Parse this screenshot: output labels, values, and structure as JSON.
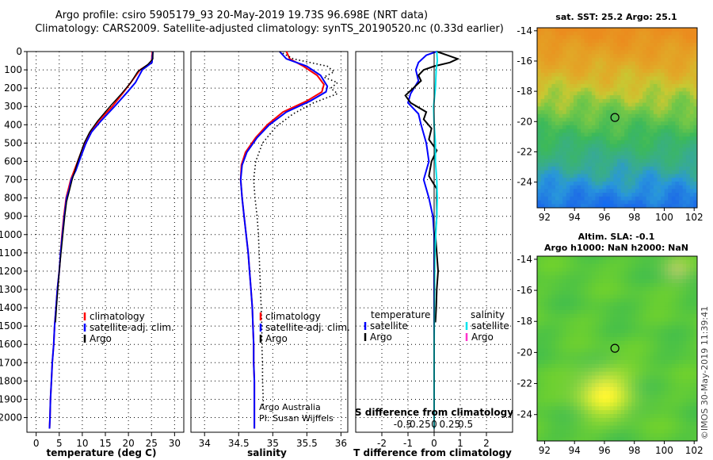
{
  "header": {
    "line1": "Argo profile: csiro 5905179_93 20-May-2019 19.73S 96.698E (NRT data)",
    "line2": "Climatology: CARS2009. Satellite-adjusted climatology: synTS_20190520.nc (0.33d earlier)"
  },
  "colors": {
    "climatology": "#ff0000",
    "satellite": "#0000ff",
    "argo": "#000000",
    "sat_salinity": "#00e5ee",
    "argo_salinity": "#ff33cc"
  },
  "chart_data": [
    {
      "type": "line",
      "name": "temperature",
      "xlabel": "temperature (deg C)",
      "xlim": [
        -2,
        32
      ],
      "ylim": [
        2080,
        0
      ],
      "xticks": [
        "0",
        "5",
        "10",
        "15",
        "20",
        "25",
        "30"
      ],
      "yticks": [
        "0",
        "100",
        "200",
        "300",
        "400",
        "500",
        "600",
        "700",
        "800",
        "900",
        "1000",
        "1100",
        "1200",
        "1300",
        "1400",
        "1500",
        "1600",
        "1700",
        "1800",
        "1900",
        "2000"
      ],
      "legend": [
        "climatology",
        "satellite-adj. clim.",
        "Argo"
      ],
      "series": [
        {
          "name": "climatology",
          "color": "#ff0000",
          "points": [
            [
              25.2,
              0
            ],
            [
              25.1,
              30
            ],
            [
              25,
              60
            ],
            [
              22.5,
              100
            ],
            [
              20.5,
              170
            ],
            [
              19,
              220
            ],
            [
              16.5,
              300
            ],
            [
              13.5,
              380
            ],
            [
              11.5,
              450
            ],
            [
              10.5,
              500
            ],
            [
              9,
              600
            ],
            [
              7.5,
              700
            ],
            [
              7,
              750
            ],
            [
              6.5,
              800
            ],
            [
              6,
              900
            ],
            [
              5.6,
              1000
            ],
            [
              5.3,
              1100
            ],
            [
              5,
              1200
            ],
            [
              4.6,
              1300
            ],
            [
              4.3,
              1400
            ],
            [
              4,
              1500
            ],
            [
              3.8,
              1600
            ],
            [
              3.5,
              1700
            ],
            [
              3.3,
              1800
            ],
            [
              3.1,
              1900
            ],
            [
              3,
              2000
            ],
            [
              2.9,
              2060
            ]
          ]
        },
        {
          "name": "satellite-adj. clim.",
          "color": "#0000ff",
          "points": [
            [
              25.3,
              0
            ],
            [
              25.1,
              60
            ],
            [
              23,
              100
            ],
            [
              21.5,
              170
            ],
            [
              19.8,
              220
            ],
            [
              17,
              300
            ],
            [
              14,
              380
            ],
            [
              12,
              440
            ],
            [
              10.8,
              500
            ],
            [
              9.3,
              600
            ],
            [
              8.6,
              650
            ],
            [
              7.6,
              700
            ],
            [
              7.2,
              750
            ],
            [
              6.6,
              800
            ],
            [
              6.1,
              900
            ],
            [
              5.7,
              1000
            ],
            [
              5.3,
              1100
            ],
            [
              5,
              1200
            ],
            [
              4.6,
              1300
            ],
            [
              4.3,
              1400
            ],
            [
              4,
              1500
            ],
            [
              3.8,
              1600
            ],
            [
              3.5,
              1700
            ],
            [
              3.3,
              1800
            ],
            [
              3.1,
              1900
            ],
            [
              3,
              2000
            ],
            [
              2.9,
              2060
            ]
          ]
        },
        {
          "name": "Argo",
          "color": "#000000",
          "points": [
            [
              25.3,
              0
            ],
            [
              25.3,
              40
            ],
            [
              24.2,
              70
            ],
            [
              22,
              110
            ],
            [
              20.5,
              170
            ],
            [
              18.5,
              230
            ],
            [
              16,
              300
            ],
            [
              13.3,
              380
            ],
            [
              11.6,
              440
            ],
            [
              10.4,
              500
            ],
            [
              9,
              600
            ],
            [
              7.8,
              700
            ],
            [
              7.2,
              760
            ],
            [
              6.6,
              820
            ],
            [
              6.2,
              900
            ],
            [
              5.8,
              1000
            ],
            [
              5.4,
              1100
            ],
            [
              5,
              1200
            ],
            [
              4.7,
              1300
            ],
            [
              4.4,
              1400
            ],
            [
              4.2,
              1480
            ]
          ]
        }
      ]
    },
    {
      "type": "line",
      "name": "salinity",
      "xlabel": "salinity",
      "xlim": [
        33.8,
        36.1
      ],
      "ylim": [
        2080,
        0
      ],
      "xticks": [
        "34",
        "34.5",
        "35",
        "35.5",
        "36"
      ],
      "legend": [
        "climatology",
        "satellite-adj. clim.",
        "Argo"
      ],
      "annotations": [
        "Argo Australia",
        "PI: Susan Wijffels"
      ],
      "series": [
        {
          "name": "climatology",
          "color": "#ff0000",
          "points": [
            [
              35.2,
              0
            ],
            [
              35.25,
              40
            ],
            [
              35.45,
              80
            ],
            [
              35.65,
              130
            ],
            [
              35.75,
              180
            ],
            [
              35.72,
              220
            ],
            [
              35.5,
              270
            ],
            [
              35.15,
              330
            ],
            [
              34.92,
              400
            ],
            [
              34.75,
              470
            ],
            [
              34.6,
              550
            ],
            [
              34.54,
              620
            ],
            [
              34.53,
              700
            ],
            [
              34.55,
              800
            ],
            [
              34.58,
              900
            ],
            [
              34.61,
              1000
            ],
            [
              34.64,
              1100
            ],
            [
              34.66,
              1200
            ],
            [
              34.68,
              1300
            ],
            [
              34.7,
              1400
            ],
            [
              34.71,
              1500
            ],
            [
              34.72,
              1600
            ],
            [
              34.72,
              1700
            ],
            [
              34.73,
              1800
            ],
            [
              34.73,
              1900
            ],
            [
              34.73,
              2000
            ],
            [
              34.73,
              2060
            ]
          ]
        },
        {
          "name": "satellite-adj. clim.",
          "color": "#0000ff",
          "points": [
            [
              35.1,
              0
            ],
            [
              35.2,
              40
            ],
            [
              35.5,
              80
            ],
            [
              35.7,
              130
            ],
            [
              35.8,
              190
            ],
            [
              35.78,
              220
            ],
            [
              35.55,
              270
            ],
            [
              35.2,
              330
            ],
            [
              34.95,
              400
            ],
            [
              34.77,
              470
            ],
            [
              34.62,
              550
            ],
            [
              34.55,
              620
            ],
            [
              34.53,
              700
            ],
            [
              34.55,
              800
            ],
            [
              34.58,
              900
            ],
            [
              34.61,
              1000
            ],
            [
              34.64,
              1100
            ],
            [
              34.66,
              1200
            ],
            [
              34.68,
              1300
            ],
            [
              34.7,
              1400
            ],
            [
              34.71,
              1500
            ],
            [
              34.72,
              1600
            ],
            [
              34.72,
              1700
            ],
            [
              34.73,
              1800
            ],
            [
              34.73,
              1900
            ],
            [
              34.73,
              2000
            ],
            [
              34.73,
              2060
            ]
          ]
        },
        {
          "name": "Argo",
          "color": "#000000",
          "points": [
            [
              35.1,
              0
            ],
            [
              35.3,
              40
            ],
            [
              35.8,
              80
            ],
            [
              35.9,
              110
            ],
            [
              35.75,
              140
            ],
            [
              35.95,
              170
            ],
            [
              35.85,
              200
            ],
            [
              35.95,
              230
            ],
            [
              35.6,
              280
            ],
            [
              35.3,
              340
            ],
            [
              35.05,
              410
            ],
            [
              34.85,
              500
            ],
            [
              34.75,
              600
            ],
            [
              34.72,
              700
            ],
            [
              34.74,
              800
            ],
            [
              34.77,
              900
            ],
            [
              34.79,
              1000
            ],
            [
              34.8,
              1100
            ],
            [
              34.81,
              1200
            ],
            [
              34.82,
              1300
            ],
            [
              34.83,
              1400
            ],
            [
              34.84,
              1500
            ],
            [
              34.84,
              1600
            ],
            [
              34.85,
              1700
            ],
            [
              34.85,
              1800
            ],
            [
              34.86,
              1900
            ],
            [
              34.86,
              1940
            ]
          ]
        }
      ]
    },
    {
      "type": "line",
      "name": "difference",
      "xlabel": "T difference from climatology",
      "xlim": [
        -3,
        3
      ],
      "ylim": [
        2080,
        0
      ],
      "xticks": [
        "-2",
        "-1",
        "0",
        "1",
        "2"
      ],
      "sticks": [
        "-0.5",
        "-0.25",
        "0",
        "0.25",
        "0.5"
      ],
      "s_axis_label": "S difference from climatology",
      "legend_left": {
        "title": "temperature",
        "items": [
          "satellite",
          "Argo"
        ]
      },
      "legend_right": {
        "title": "salinity",
        "items": [
          "satellite",
          "Argo"
        ]
      },
      "series": [
        {
          "name": "T satellite",
          "color": "#0000ff",
          "points": [
            [
              0.1,
              0
            ],
            [
              -0.3,
              20
            ],
            [
              -0.6,
              60
            ],
            [
              -0.7,
              100
            ],
            [
              -0.6,
              160
            ],
            [
              -0.9,
              230
            ],
            [
              -1,
              280
            ],
            [
              -0.6,
              340
            ],
            [
              -0.5,
              400
            ],
            [
              -0.3,
              500
            ],
            [
              -0.2,
              600
            ],
            [
              -0.4,
              700
            ],
            [
              -0.2,
              800
            ],
            [
              -0.05,
              900
            ],
            [
              0,
              1000
            ],
            [
              0,
              1200
            ],
            [
              0,
              1500
            ],
            [
              0,
              1800
            ],
            [
              0,
              2060
            ]
          ]
        },
        {
          "name": "T Argo",
          "color": "#000000",
          "points": [
            [
              0.1,
              0
            ],
            [
              0.5,
              20
            ],
            [
              0.9,
              40
            ],
            [
              0.6,
              60
            ],
            [
              0,
              80
            ],
            [
              -0.4,
              100
            ],
            [
              -0.6,
              130
            ],
            [
              -0.5,
              160
            ],
            [
              -0.8,
              200
            ],
            [
              -1.1,
              240
            ],
            [
              -0.9,
              280
            ],
            [
              -0.3,
              330
            ],
            [
              -0.4,
              370
            ],
            [
              -0.1,
              420
            ],
            [
              -0.2,
              480
            ],
            [
              0.1,
              540
            ],
            [
              -0.1,
              600
            ],
            [
              -0.2,
              680
            ],
            [
              0.1,
              750
            ],
            [
              0.1,
              900
            ],
            [
              0.05,
              1000
            ],
            [
              0.1,
              1100
            ],
            [
              0.15,
              1200
            ],
            [
              0.1,
              1300
            ],
            [
              0.08,
              1400
            ],
            [
              0.05,
              1480
            ]
          ]
        },
        {
          "name": "S satellite",
          "color": "#00e5ee",
          "points": [
            [
              0.1,
              0
            ],
            [
              0.12,
              50
            ],
            [
              0.08,
              100
            ],
            [
              0.05,
              200
            ],
            [
              -0.02,
              300
            ],
            [
              0,
              400
            ],
            [
              0.05,
              500
            ],
            [
              0.05,
              600
            ],
            [
              0.1,
              700
            ],
            [
              0.12,
              800
            ],
            [
              0.1,
              900
            ],
            [
              0.06,
              1000
            ],
            [
              0.03,
              1100
            ],
            [
              0.02,
              1200
            ],
            [
              0.01,
              1400
            ],
            [
              0,
              1600
            ],
            [
              0,
              2060
            ]
          ]
        }
      ]
    },
    {
      "type": "heatmap",
      "name": "sst_map",
      "title": "sat. SST: 25.2 Argo: 25.1",
      "xticks": [
        "92",
        "94",
        "96",
        "98",
        "100",
        "102"
      ],
      "yticks": [
        "-14",
        "-16",
        "-18",
        "-20",
        "-22",
        "-24"
      ],
      "xlim": [
        91.5,
        102.2
      ],
      "ylim": [
        -25.7,
        -13.8
      ],
      "marker": [
        96.7,
        -19.73
      ]
    },
    {
      "type": "heatmap",
      "name": "sla_map",
      "title1": "Altim. SLA: -0.1",
      "title2": "Argo h1000: NaN h2000: NaN",
      "xticks": [
        "92",
        "94",
        "96",
        "98",
        "100",
        "102"
      ],
      "yticks": [
        "-14",
        "-16",
        "-18",
        "-20",
        "-22",
        "-24"
      ],
      "xlim": [
        91.5,
        102.2
      ],
      "ylim": [
        -25.7,
        -13.8
      ],
      "marker": [
        96.7,
        -19.73
      ]
    }
  ],
  "footer": {
    "credit": "©IMOS 30-May-2019 11:39:41"
  }
}
